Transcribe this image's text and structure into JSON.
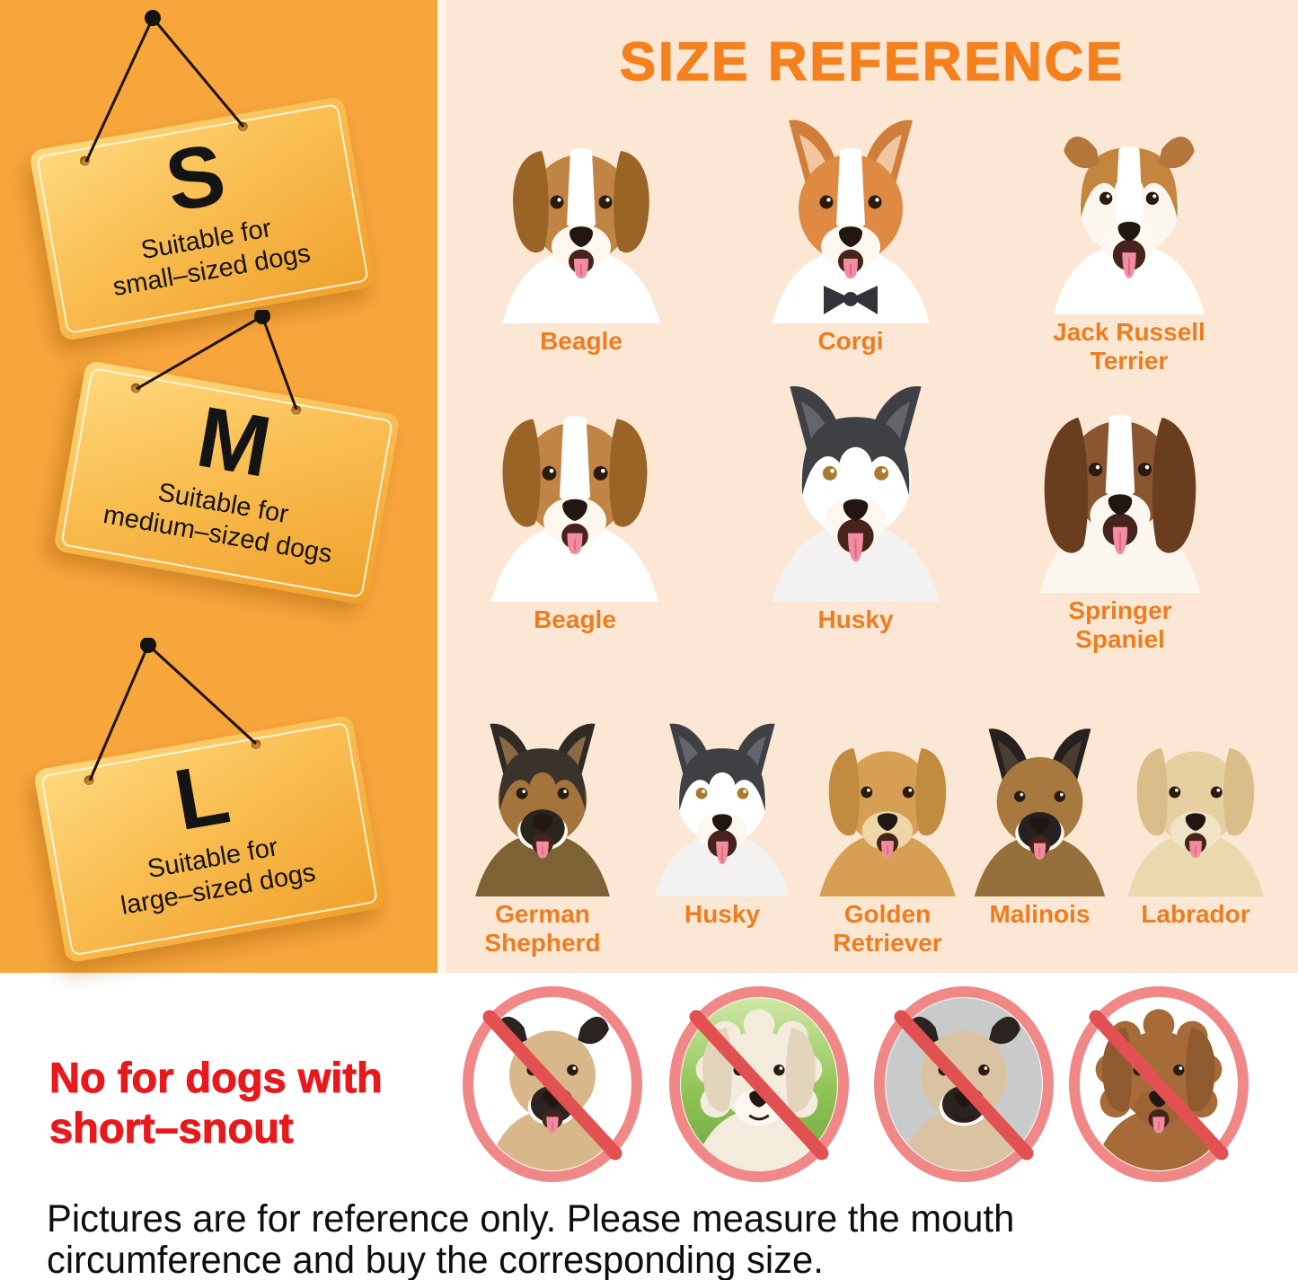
{
  "palette": {
    "left_bg": "#F7A63C",
    "panel_bg": "#FBE7D4",
    "divider": "#FDF6E8",
    "title_orange": "#F5811E",
    "label_orange": "#ED7D1F",
    "tag_gradient_top": "#FFDA80",
    "tag_gradient_bottom": "#F0A02B",
    "warning_red": "#E8191C",
    "ban_ring": "#F08888",
    "ban_slash": "#E25151"
  },
  "sidebar": {
    "tags": [
      {
        "letter": "S",
        "desc_line1": "Suitable for",
        "desc_line2": "small–sized dogs"
      },
      {
        "letter": "M",
        "desc_line1": "Suitable for",
        "desc_line2": "medium–sized dogs"
      },
      {
        "letter": "L",
        "desc_line1": "Suitable for",
        "desc_line2": "large–sized dogs"
      }
    ]
  },
  "main": {
    "title": "SIZE REFERENCE",
    "rows": [
      {
        "size": "S",
        "dogs": [
          {
            "name": "Beagle",
            "art": {
              "ear": "floppy",
              "fur": "#C08544",
              "earColor": "#9A6426",
              "blaze": true,
              "body": "#FFFFFF",
              "tongue": true
            }
          },
          {
            "name": "Corgi",
            "art": {
              "ear": "prick",
              "fur": "#DE8A42",
              "earColor": "#D07E3C",
              "earInner": "#F2C6A0",
              "blaze": true,
              "body": "#FFFFFF",
              "tongue": true,
              "bowtie": "#33343A"
            }
          },
          {
            "name": "Jack Russell Terrier",
            "art": {
              "ear": "fold",
              "fur": "#FBF7EE",
              "earColor": "#B5763B",
              "cap": "#C4863F",
              "blaze": true,
              "body": "#FFFFFF",
              "tongue": true,
              "bigMouth": true
            }
          }
        ]
      },
      {
        "size": "M",
        "dogs": [
          {
            "name": "Beagle",
            "art": {
              "ear": "floppy",
              "fur": "#C08544",
              "earColor": "#9A6426",
              "blaze": true,
              "body": "#FFFFFF",
              "tongue": true
            }
          },
          {
            "name": "Husky",
            "art": {
              "ear": "prick",
              "fur": "#FFFFFF",
              "earColor": "#3F4044",
              "earInner": "#64656B",
              "cap": "#3F4044",
              "body": "#F3F2F0",
              "tongue": true,
              "bigMouth": true,
              "eye": "#A87B2F"
            }
          },
          {
            "name": "Springer Spaniel",
            "art": {
              "ear": "long",
              "fur": "#8A5631",
              "earColor": "#6B3D1F",
              "blaze": true,
              "body": "#FBF7EE",
              "tongue": true,
              "bigMouth": true
            }
          }
        ]
      },
      {
        "size": "L",
        "dogs": [
          {
            "name": "German Shepherd",
            "art": {
              "ear": "prick",
              "fur": "#A3743C",
              "earColor": "#2F2A26",
              "earInner": "#8A6A43",
              "cap": "#3A332C",
              "mask": "#2A241F",
              "body": "#7D6236",
              "tongue": true
            }
          },
          {
            "name": "Husky",
            "art": {
              "ear": "prick",
              "fur": "#FFFFFF",
              "earColor": "#3F4044",
              "earInner": "#64656B",
              "cap": "#3F4044",
              "body": "#F3F2F0",
              "tongue": true,
              "bigMouth": true,
              "eye": "#A87B2F"
            }
          },
          {
            "name": "Golden Retriever",
            "art": {
              "ear": "floppy",
              "fur": "#D79F54",
              "earColor": "#C28C40",
              "muzzle": "#EED7A6",
              "body": "#D79F54",
              "tongue": true
            }
          },
          {
            "name": "Malinois",
            "art": {
              "ear": "prick",
              "fur": "#A8793F",
              "earColor": "#26211E",
              "earInner": "#4A3C30",
              "mask": "#26211E",
              "body": "#96703C",
              "tongue": true
            }
          },
          {
            "name": "Labrador",
            "art": {
              "ear": "floppy",
              "fur": "#E6CFA0",
              "earColor": "#D9BE8A",
              "muzzle": "#F1E4C4",
              "body": "#EAD8AE",
              "tongue": true
            }
          }
        ]
      }
    ]
  },
  "warning": {
    "line1": "No for dogs with",
    "line2": "short–snout",
    "banned": [
      {
        "name": "pug",
        "art": {
          "bg": "#FFFFFF",
          "ear": "fold",
          "fur": "#D8B88A",
          "earColor": "#2B2320",
          "mask": "#2B2320",
          "body": "#D8B88A",
          "tongue": true
        }
      },
      {
        "name": "fluffy puppy",
        "art": {
          "bg": "linear-gradient(180deg,#CFE8A6 0%,#8FC253 55%,#6EA83F 100%)",
          "ear": "floppy",
          "fur": "#F3EBDC",
          "earColor": "#E3D5BC",
          "body": "#F3EBDC",
          "fluff": true,
          "closed": true
        }
      },
      {
        "name": "pug close-up",
        "art": {
          "bg": "#C9CBCA",
          "ear": "fold",
          "fur": "#D9C3A2",
          "earColor": "#2B2320",
          "mask": "#2B2320",
          "body": "#D9C3A2",
          "closed": true
        }
      },
      {
        "name": "toy poodle",
        "art": {
          "bg": "#FFFFFF",
          "ear": "floppy",
          "fur": "#A66B38",
          "earColor": "#8F5A2D",
          "muzzle": "#9C6434",
          "body": "#A66B38",
          "fluff": true,
          "tongue": true
        }
      }
    ]
  },
  "footer": {
    "text": "Pictures are for reference only. Please measure the mouth circumference and buy the corresponding size."
  }
}
